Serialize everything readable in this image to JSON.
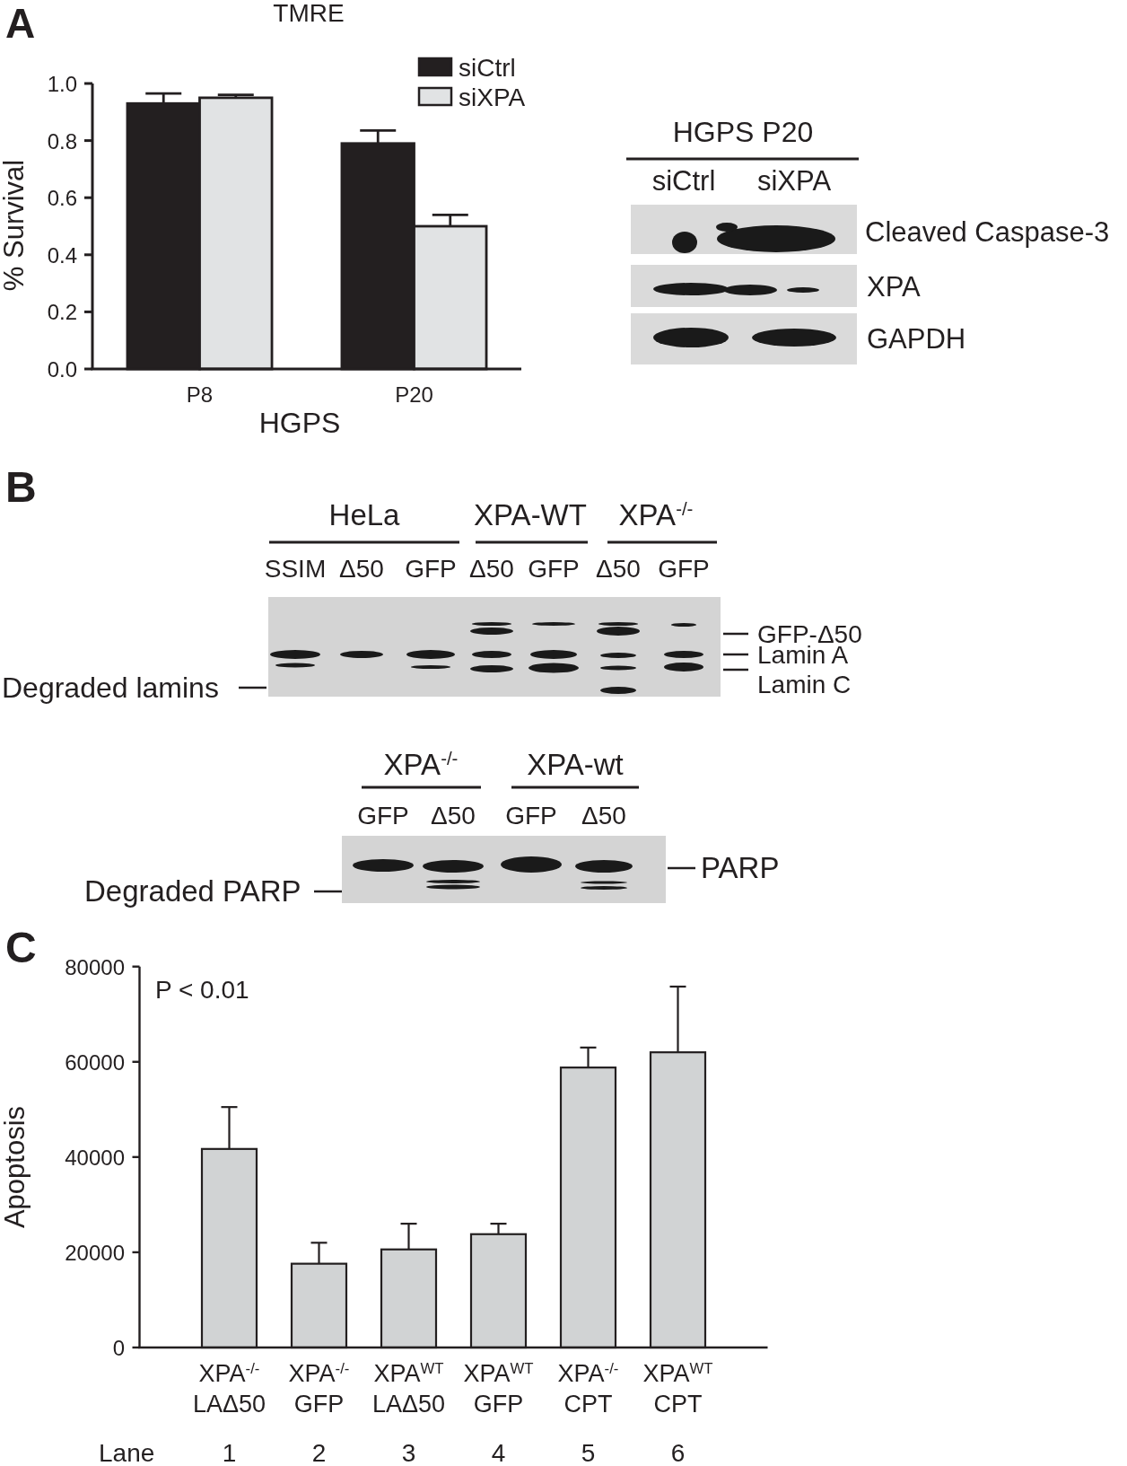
{
  "chart_data": [
    {
      "type": "bar",
      "title": "TMRE",
      "xlabel": "HGPS",
      "ylabel": "% Survival",
      "categories": [
        "P8",
        "P20"
      ],
      "series": [
        {
          "name": "siCtrl",
          "color": "#231f20",
          "values": [
            0.93,
            0.79
          ],
          "errors": [
            0.035,
            0.045
          ]
        },
        {
          "name": "siXPA",
          "color": "#e1e3e4",
          "values": [
            0.95,
            0.5
          ],
          "errors": [
            0.01,
            0.04
          ]
        }
      ],
      "ylim": [
        0,
        1
      ],
      "yticks": [
        {
          "value": 0,
          "label": "0.0"
        },
        0.2,
        0.4,
        0.6,
        0.8,
        {
          "value": 1,
          "label": "1.0"
        }
      ],
      "legend": "top right",
      "annotations": [
        "A"
      ]
    },
    {
      "type": "other",
      "annotations": [
        "HGPS P20",
        "siCtrl",
        "siXPA",
        "Cleaved Caspase-3",
        "XPA",
        "GAPDH"
      ]
    },
    {
      "type": "other",
      "annotations": [
        "B",
        "HeLa",
        "XPA-WT",
        "XPA$^{-/-}$",
        "SSIM",
        "Δ50",
        "GFP",
        "Δ50",
        "GFP",
        "Δ50",
        "GFP",
        "GFP-Δ50",
        "Lamin A",
        "Lamin C",
        "Degraded lamins",
        "XPA$^{-/-}$",
        "XPA-wt",
        "GFP",
        "Δ50",
        "GFP",
        "Δ50",
        "PARP",
        "Degraded PARP"
      ]
    },
    {
      "type": "bar",
      "ylabel": "Apoptosis",
      "categories": [
        "XPA$^{-/-}$\nLAΔ50",
        "XPA$^{-/-}$\nGFP",
        "XPA$^{WT}$\nLAΔ50",
        "XPA$^{WT}$\nGFP",
        "XPA$^{-/-}$\nCPT",
        "XPA$^{WT}$\nCPT"
      ],
      "values": [
        41700,
        17600,
        20600,
        23800,
        58800,
        62000
      ],
      "errors": [
        8800,
        4400,
        5400,
        2200,
        4200,
        13800
      ],
      "color": "#d1d3d4",
      "ylim": [
        0,
        80000
      ],
      "yticks": [
        0,
        20000,
        40000,
        60000,
        80000
      ],
      "annotations": [
        "C",
        "P < 0.01",
        "Lane",
        "1",
        "2",
        "3",
        "4",
        "5",
        "6"
      ]
    }
  ]
}
